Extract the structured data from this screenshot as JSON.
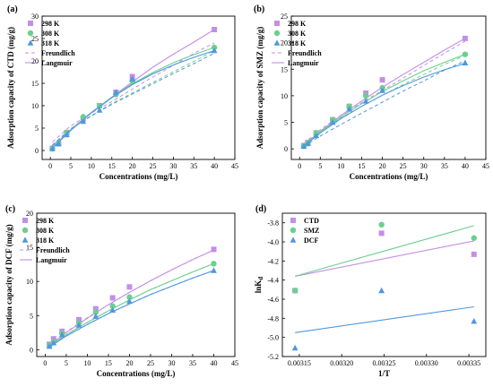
{
  "colors": {
    "k298": "#c38ee8",
    "k308": "#6dcf8e",
    "k318": "#4f97e0",
    "ctd": "#c38ee8",
    "smz": "#6dcf8e",
    "dcf": "#4f97e0",
    "axis": "#000000"
  },
  "chart_data": [
    {
      "id": "a",
      "type": "scatter",
      "panel_label": "(a)",
      "xlabel": "Concentrations (mg/L)",
      "ylabel": "Adsorption capacity of CTD (mg/g)",
      "xlim": [
        -2,
        45
      ],
      "ylim": [
        -2,
        30
      ],
      "xticks": [
        0,
        5,
        10,
        15,
        20,
        25,
        30,
        35,
        40,
        45
      ],
      "yticks": [
        0,
        5,
        10,
        15,
        20,
        25,
        30
      ],
      "legend_position": "top-left",
      "legend": {
        "s298": "298 K",
        "s308": "308 K",
        "s318": "318 K",
        "freundlich": "Freundlich",
        "langmuir": "Langmuir"
      },
      "series": [
        {
          "name": "298 K",
          "color_key": "k298",
          "marker": "square",
          "x": [
            0.5,
            2,
            4,
            8,
            12,
            16,
            20,
            40
          ],
          "y": [
            0.5,
            1.5,
            4,
            7,
            10,
            13,
            16.5,
            27
          ],
          "langmuir": [
            [
              0.5,
              0.8
            ],
            [
              5,
              4.7
            ],
            [
              10,
              8.5
            ],
            [
              15,
              11.9
            ],
            [
              20,
              15.3
            ],
            [
              25,
              18.6
            ],
            [
              30,
              21.5
            ],
            [
              35,
              24.2
            ],
            [
              40,
              27
            ]
          ],
          "freundlich": [
            [
              0.5,
              1.9
            ],
            [
              5,
              5.5
            ],
            [
              10,
              8.4
            ],
            [
              15,
              10.9
            ],
            [
              20,
              13.7
            ],
            [
              25,
              16.4
            ],
            [
              30,
              19
            ],
            [
              35,
              21.7
            ],
            [
              40,
              24
            ]
          ]
        },
        {
          "name": "308 K",
          "color_key": "k308",
          "marker": "circle",
          "x": [
            0.5,
            2,
            4,
            8,
            12,
            16,
            20,
            40
          ],
          "y": [
            0.4,
            1.5,
            4,
            7.5,
            10,
            12.5,
            15.5,
            23
          ],
          "langmuir": [
            [
              0.5,
              0.6
            ],
            [
              5,
              4.6
            ],
            [
              10,
              8.5
            ],
            [
              15,
              11.9
            ],
            [
              20,
              14.9
            ],
            [
              25,
              17.4
            ],
            [
              30,
              19.6
            ],
            [
              35,
              21.4
            ],
            [
              40,
              23
            ]
          ],
          "freundlich": [
            [
              0.5,
              1.3
            ],
            [
              5,
              4.9
            ],
            [
              10,
              7.8
            ],
            [
              15,
              10.5
            ],
            [
              20,
              12.8
            ],
            [
              25,
              15.2
            ],
            [
              30,
              17.6
            ],
            [
              35,
              19.9
            ],
            [
              40,
              22.3
            ]
          ]
        },
        {
          "name": "318 K",
          "color_key": "k318",
          "marker": "triangle",
          "x": [
            0.5,
            2,
            4,
            8,
            12,
            16,
            20,
            40
          ],
          "y": [
            0.4,
            1.5,
            3.5,
            6.5,
            9,
            13,
            16,
            22.3
          ],
          "langmuir": [
            [
              0.5,
              0.5
            ],
            [
              5,
              4.5
            ],
            [
              10,
              8.4
            ],
            [
              15,
              11.8
            ],
            [
              20,
              14.7
            ],
            [
              25,
              17.1
            ],
            [
              30,
              19.1
            ],
            [
              35,
              20.8
            ],
            [
              40,
              22.3
            ]
          ],
          "freundlich": [
            [
              0.5,
              1.1
            ],
            [
              5,
              4.8
            ],
            [
              10,
              7.7
            ],
            [
              15,
              10.3
            ],
            [
              20,
              12.6
            ],
            [
              25,
              14.9
            ],
            [
              30,
              17.2
            ],
            [
              35,
              19.4
            ],
            [
              40,
              21.7
            ]
          ]
        }
      ]
    },
    {
      "id": "b",
      "type": "scatter",
      "panel_label": "(b)",
      "xlabel": "Concentrations (mg/L)",
      "ylabel": "Adsorption capacity of SMZ (mg/g)",
      "xlim": [
        -2,
        45
      ],
      "ylim": [
        -2,
        25
      ],
      "xticks": [
        0,
        5,
        10,
        15,
        20,
        25,
        30,
        35,
        40,
        45
      ],
      "yticks": [
        0,
        5,
        10,
        15,
        20,
        25
      ],
      "legend_position": "top-left",
      "legend": {
        "s298": "298 K",
        "s308": "308 K",
        "s318": "318 K",
        "freundlich": "Freundlich",
        "langmuir": "Langmuir"
      },
      "series": [
        {
          "name": "298 K",
          "color_key": "k298",
          "marker": "square",
          "x": [
            1,
            2,
            4,
            8,
            12,
            16,
            20,
            40
          ],
          "y": [
            0.6,
            1.2,
            3,
            5.5,
            8,
            10.5,
            13,
            20.8
          ],
          "langmuir": [
            [
              1,
              0.7
            ],
            [
              5,
              3.3
            ],
            [
              10,
              6.3
            ],
            [
              15,
              9
            ],
            [
              20,
              11.6
            ],
            [
              25,
              14
            ],
            [
              30,
              16.3
            ],
            [
              35,
              18.6
            ],
            [
              40,
              20.8
            ]
          ],
          "freundlich": [
            [
              1,
              1
            ],
            [
              5,
              3.6
            ],
            [
              10,
              6.3
            ],
            [
              15,
              8.7
            ],
            [
              20,
              11
            ],
            [
              25,
              13.3
            ],
            [
              30,
              15.7
            ],
            [
              35,
              18
            ],
            [
              40,
              20.3
            ]
          ]
        },
        {
          "name": "308 K",
          "color_key": "k308",
          "marker": "circle",
          "x": [
            1,
            2,
            4,
            8,
            12,
            16,
            20,
            40
          ],
          "y": [
            0.5,
            1,
            3,
            5.5,
            8,
            10,
            11.5,
            17.8
          ],
          "langmuir": [
            [
              1,
              0.6
            ],
            [
              5,
              3.2
            ],
            [
              10,
              6
            ],
            [
              15,
              8.5
            ],
            [
              20,
              10.8
            ],
            [
              25,
              12.8
            ],
            [
              30,
              14.7
            ],
            [
              35,
              16.3
            ],
            [
              40,
              17.8
            ]
          ],
          "freundlich": [
            [
              1,
              0.9
            ],
            [
              5,
              3.3
            ],
            [
              10,
              5.8
            ],
            [
              15,
              8
            ],
            [
              20,
              10.1
            ],
            [
              25,
              12.1
            ],
            [
              30,
              14
            ],
            [
              35,
              15.9
            ],
            [
              40,
              17.6
            ]
          ]
        },
        {
          "name": "318 K",
          "color_key": "k318",
          "marker": "triangle",
          "x": [
            1,
            2,
            4,
            8,
            12,
            16,
            20,
            40
          ],
          "y": [
            0.5,
            1,
            2.5,
            5,
            7.5,
            9,
            11,
            16.2
          ],
          "langmuir": [
            [
              1,
              0.5
            ],
            [
              5,
              3
            ],
            [
              10,
              5.7
            ],
            [
              15,
              8
            ],
            [
              20,
              10.1
            ],
            [
              25,
              11.9
            ],
            [
              30,
              13.5
            ],
            [
              35,
              14.9
            ],
            [
              40,
              16.1
            ]
          ],
          "freundlich": [
            [
              1,
              0.5
            ],
            [
              5,
              2.4
            ],
            [
              10,
              4.6
            ],
            [
              15,
              6.7
            ],
            [
              20,
              8.8
            ],
            [
              25,
              10.9
            ],
            [
              30,
              12.8
            ],
            [
              35,
              14.8
            ],
            [
              40,
              16.6
            ]
          ]
        }
      ]
    },
    {
      "id": "c",
      "type": "scatter",
      "panel_label": "(c)",
      "xlabel": "Concentrations (mg/L)",
      "ylabel": "Adsorption capacity of DCF (mg/g)",
      "xlim": [
        -2,
        45
      ],
      "ylim": [
        -1,
        20
      ],
      "xticks": [
        0,
        5,
        10,
        15,
        20,
        25,
        30,
        35,
        40,
        45
      ],
      "yticks": [
        0,
        5,
        10,
        15,
        20
      ],
      "legend_position": "top-left",
      "legend": {
        "s298": "298 K",
        "s308": "308 K",
        "s318": "318 K",
        "freundlich": "Freundlich",
        "langmuir": "Langmuir"
      },
      "series": [
        {
          "name": "298 K",
          "color_key": "k298",
          "marker": "square",
          "x": [
            1,
            2,
            4,
            8,
            12,
            16,
            20,
            40
          ],
          "y": [
            0.8,
            1.6,
            2.7,
            4.4,
            6,
            7.6,
            9.2,
            14.7
          ],
          "langmuir": [
            [
              1,
              0.6
            ],
            [
              5,
              2.5
            ],
            [
              10,
              4.6
            ],
            [
              15,
              6.6
            ],
            [
              20,
              8.4
            ],
            [
              25,
              10.1
            ],
            [
              30,
              11.7
            ],
            [
              35,
              13.2
            ],
            [
              40,
              14.6
            ]
          ],
          "freundlich": [
            [
              1,
              0.7
            ],
            [
              5,
              2.6
            ],
            [
              10,
              4.7
            ],
            [
              15,
              6.6
            ],
            [
              20,
              8.4
            ],
            [
              25,
              10.1
            ],
            [
              30,
              11.7
            ],
            [
              35,
              13.2
            ],
            [
              40,
              14.6
            ]
          ]
        },
        {
          "name": "308 K",
          "color_key": "k308",
          "marker": "circle",
          "x": [
            1,
            2,
            4,
            8,
            12,
            16,
            20,
            40
          ],
          "y": [
            0.6,
            1.2,
            2.4,
            3.9,
            5.5,
            6.4,
            7.7,
            12.6
          ],
          "langmuir": [
            [
              1,
              0.5
            ],
            [
              5,
              2.2
            ],
            [
              10,
              4
            ],
            [
              15,
              5.7
            ],
            [
              20,
              7.3
            ],
            [
              25,
              8.8
            ],
            [
              30,
              10.1
            ],
            [
              35,
              11.4
            ],
            [
              40,
              12.6
            ]
          ],
          "freundlich": [
            [
              1,
              0.5
            ],
            [
              5,
              2.2
            ],
            [
              10,
              4
            ],
            [
              15,
              5.7
            ],
            [
              20,
              7.3
            ],
            [
              25,
              8.8
            ],
            [
              30,
              10.1
            ],
            [
              35,
              11.4
            ],
            [
              40,
              12.6
            ]
          ]
        },
        {
          "name": "318 K",
          "color_key": "k318",
          "marker": "triangle",
          "x": [
            1,
            2,
            4,
            8,
            12,
            16,
            20,
            40
          ],
          "y": [
            0.5,
            1,
            2.2,
            3.6,
            4.9,
            5.8,
            7.1,
            11.6
          ],
          "langmuir": [
            [
              1,
              0.4
            ],
            [
              5,
              2
            ],
            [
              10,
              3.7
            ],
            [
              15,
              5.3
            ],
            [
              20,
              6.7
            ],
            [
              25,
              8.1
            ],
            [
              30,
              9.3
            ],
            [
              35,
              10.5
            ],
            [
              40,
              11.6
            ]
          ],
          "freundlich": [
            [
              1,
              0.4
            ],
            [
              5,
              2
            ],
            [
              10,
              3.7
            ],
            [
              15,
              5.3
            ],
            [
              20,
              6.7
            ],
            [
              25,
              8.1
            ],
            [
              30,
              9.3
            ],
            [
              35,
              10.5
            ],
            [
              40,
              11.6
            ]
          ]
        }
      ]
    },
    {
      "id": "d",
      "type": "scatter",
      "panel_label": "(d)",
      "xlabel": "1/T",
      "ylabel": "lnK",
      "ylabel_sub": "d",
      "xlim": [
        0.00313,
        0.00337
      ],
      "ylim": [
        -5.2,
        -3.7
      ],
      "xticks": [
        0.00315,
        0.0032,
        0.00325,
        0.0033,
        0.00335
      ],
      "xtick_labels": [
        "0.00315",
        "0.00320",
        "0.00325",
        "0.00330",
        "0.00335"
      ],
      "yticks": [
        -5.2,
        -5.0,
        -4.8,
        -4.6,
        -4.4,
        -4.2,
        -4.0,
        -3.8
      ],
      "ytick_labels": [
        "-5.2",
        "-5.0",
        "-4.8",
        "-4.6",
        "-4.4",
        "-4.2",
        "-4.0",
        "-3.8"
      ],
      "legend_position": "top-left",
      "legend": {
        "ctd": "CTD",
        "smz": "SMZ",
        "dcf": "DCF"
      },
      "series": [
        {
          "name": "CTD",
          "color_key": "ctd",
          "marker": "square",
          "x": [
            0.003145,
            0.003247,
            0.003356
          ],
          "y": [
            -4.51,
            -3.91,
            -4.13
          ],
          "fit": [
            [
              0.003145,
              -4.36
            ],
            [
              0.003356,
              -3.99
            ]
          ]
        },
        {
          "name": "SMZ",
          "color_key": "smz",
          "marker": "circle",
          "x": [
            0.003145,
            0.003247,
            0.003356
          ],
          "y": [
            -4.51,
            -3.82,
            -3.96
          ],
          "fit": [
            [
              0.003145,
              -4.36
            ],
            [
              0.003356,
              -3.83
            ]
          ]
        },
        {
          "name": "DCF",
          "color_key": "dcf",
          "marker": "triangle",
          "x": [
            0.003145,
            0.003247,
            0.003356
          ],
          "y": [
            -5.11,
            -4.51,
            -4.83
          ],
          "fit": [
            [
              0.003145,
              -4.95
            ],
            [
              0.003356,
              -4.68
            ]
          ]
        }
      ]
    }
  ]
}
